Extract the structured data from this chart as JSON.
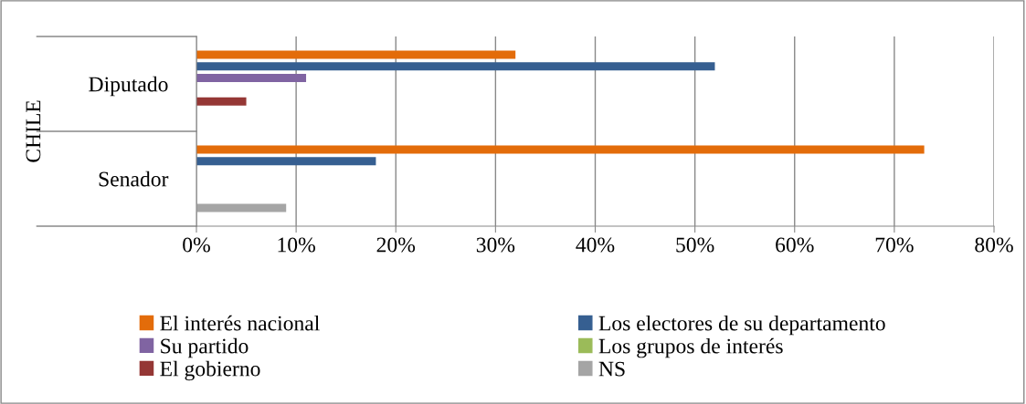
{
  "chart_data": {
    "type": "bar",
    "orientation": "horizontal",
    "categories": [
      "Diputado",
      "Senador"
    ],
    "ylabel": "CHILE",
    "series": [
      {
        "name": "El interés nacional",
        "color": "#e36c0a",
        "values": [
          32,
          73
        ]
      },
      {
        "name": "Los electores de su departamento",
        "color": "#365f91",
        "values": [
          52,
          18
        ]
      },
      {
        "name": "Su partido",
        "color": "#8064a2",
        "values": [
          11,
          null
        ]
      },
      {
        "name": "Los grupos de interés",
        "color": "#9bbb59",
        "values": [
          null,
          null
        ]
      },
      {
        "name": "El gobierno",
        "color": "#953735",
        "values": [
          5,
          null
        ]
      },
      {
        "name": "NS",
        "color": "#a5a5a5",
        "values": [
          null,
          9
        ]
      }
    ],
    "xlim": [
      0,
      80
    ],
    "xticks": [
      {
        "value": 0,
        "label": "0%"
      },
      {
        "value": 10,
        "label": "10%"
      },
      {
        "value": 20,
        "label": "20%"
      },
      {
        "value": 30,
        "label": "30%"
      },
      {
        "value": 40,
        "label": "40%"
      },
      {
        "value": 50,
        "label": "50%"
      },
      {
        "value": 60,
        "label": "60%"
      },
      {
        "value": 70,
        "label": "70%"
      },
      {
        "value": 80,
        "label": "80%"
      }
    ],
    "grid": "x",
    "legend": "bottom"
  }
}
